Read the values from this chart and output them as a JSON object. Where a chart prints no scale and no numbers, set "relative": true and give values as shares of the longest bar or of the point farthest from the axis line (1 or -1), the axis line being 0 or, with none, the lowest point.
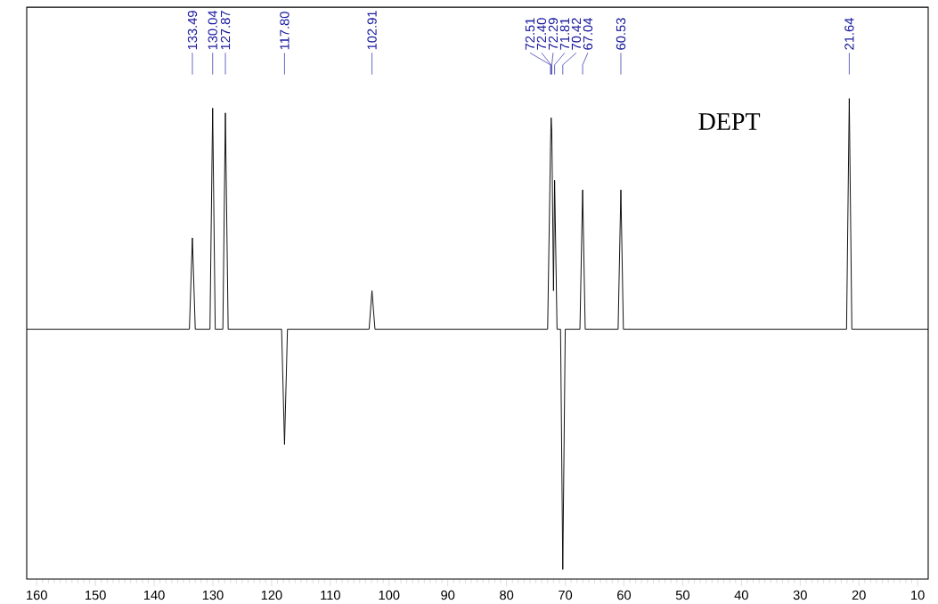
{
  "chart_data": {
    "type": "line",
    "relative": true,
    "x": [
      161.7,
      134.0,
      133.49,
      133.0,
      130.5,
      130.04,
      129.6,
      128.3,
      127.87,
      127.4,
      118.3,
      117.8,
      117.3,
      103.4,
      102.91,
      102.4,
      73.0,
      72.51,
      72.4,
      72.29,
      72.0,
      71.81,
      71.4,
      70.8,
      70.42,
      70.0,
      67.5,
      67.04,
      66.6,
      61.0,
      60.53,
      60.1,
      22.1,
      21.64,
      21.2,
      8.2
    ],
    "series": [
      {
        "color": "#000000",
        "values": [
          0.52,
          0.52,
          0.71,
          0.52,
          0.52,
          0.98,
          0.52,
          0.52,
          0.97,
          0.52,
          0.52,
          0.28,
          0.52,
          0.52,
          0.6,
          0.52,
          0.52,
          0.9,
          0.96,
          0.93,
          0.6,
          0.83,
          0.52,
          0.52,
          0.02,
          0.52,
          0.52,
          0.81,
          0.52,
          0.52,
          0.81,
          0.52,
          0.52,
          1.0,
          0.52,
          0.52
        ]
      }
    ],
    "xlim": [
      161.7,
      8.2
    ],
    "xticks": [
      160,
      150,
      140,
      130,
      120,
      110,
      100,
      90,
      80,
      70,
      60,
      50,
      40,
      30,
      20,
      10
    ],
    "annotations": [
      {
        "text": "133.49",
        "x": 133.49
      },
      {
        "text": "130.04",
        "x": 130.04
      },
      {
        "text": "127.87",
        "x": 127.87
      },
      {
        "text": "117.80",
        "x": 117.8
      },
      {
        "text": "102.91",
        "x": 102.91
      },
      {
        "text": "72.51",
        "x": 72.51
      },
      {
        "text": "72.40",
        "x": 72.4
      },
      {
        "text": "72.29",
        "x": 72.29
      },
      {
        "text": "71.81",
        "x": 71.81
      },
      {
        "text": "70.42",
        "x": 70.42
      },
      {
        "text": "67.04",
        "x": 67.04
      },
      {
        "text": "60.53",
        "x": 60.53
      },
      {
        "text": "21.64",
        "x": 21.64
      },
      "DEPT"
    ]
  }
}
